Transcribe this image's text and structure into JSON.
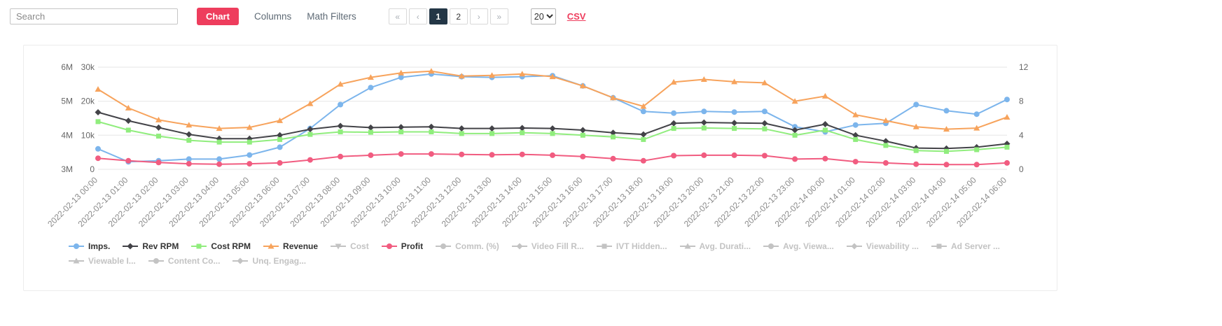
{
  "toolbar": {
    "search_placeholder": "Search",
    "chart_label": "Chart",
    "columns_label": "Columns",
    "math_filters_label": "Math Filters",
    "pagination": {
      "first_label": "«",
      "prev_label": "‹",
      "pages": [
        "1",
        "2"
      ],
      "active_page": "1",
      "next_label": "›",
      "last_label": "»"
    },
    "page_size": "20",
    "csv_label": "CSV"
  },
  "colors": {
    "accent": "#ee3d5d",
    "active_page_bg": "#233646",
    "disabled_legend": "#c3c3c3",
    "grid": "#e6e6e6"
  },
  "chart_data": {
    "type": "line",
    "grid": true,
    "legend_position": "bottom",
    "x": [
      "2022-02-13 00:00",
      "2022-02-13 01:00",
      "2022-02-13 02:00",
      "2022-02-13 03:00",
      "2022-02-13 04:00",
      "2022-02-13 05:00",
      "2022-02-13 06:00",
      "2022-02-13 07:00",
      "2022-02-13 08:00",
      "2022-02-13 09:00",
      "2022-02-13 10:00",
      "2022-02-13 11:00",
      "2022-02-13 12:00",
      "2022-02-13 13:00",
      "2022-02-13 14:00",
      "2022-02-13 15:00",
      "2022-02-13 16:00",
      "2022-02-13 17:00",
      "2022-02-13 18:00",
      "2022-02-13 19:00",
      "2022-02-13 20:00",
      "2022-02-13 21:00",
      "2022-02-13 22:00",
      "2022-02-13 23:00",
      "2022-02-14 00:00",
      "2022-02-14 01:00",
      "2022-02-14 02:00",
      "2022-02-14 03:00",
      "2022-02-14 04:00",
      "2022-02-14 05:00",
      "2022-02-14 06:00"
    ],
    "axes": {
      "left_outer": {
        "labels": [
          "6M",
          "5M",
          "4M",
          "3M"
        ],
        "min": 3,
        "max": 6,
        "unit": "M"
      },
      "left_inner": {
        "labels": [
          "30k",
          "20k",
          "10k",
          "0"
        ],
        "min": 0,
        "max": 30,
        "unit": "k"
      },
      "right": {
        "labels": [
          "12",
          "8",
          "4",
          "0"
        ],
        "min": 0,
        "max": 12,
        "unit": ""
      }
    },
    "series": [
      {
        "name": "Imps.",
        "color": "#7cb5ec",
        "marker": "circle",
        "axis": "left_outer",
        "values": [
          3.6,
          3.22,
          3.25,
          3.3,
          3.3,
          3.42,
          3.65,
          4.2,
          4.9,
          5.4,
          5.7,
          5.8,
          5.72,
          5.7,
          5.72,
          5.75,
          5.45,
          5.1,
          4.7,
          4.65,
          4.7,
          4.68,
          4.7,
          4.25,
          4.1,
          4.3,
          4.35,
          4.9,
          4.72,
          4.62,
          5.05
        ]
      },
      {
        "name": "Rev RPM",
        "color": "#434348",
        "marker": "diamond",
        "axis": "right",
        "values": [
          6.7,
          5.7,
          4.9,
          4.1,
          3.6,
          3.6,
          4.0,
          4.7,
          5.1,
          4.9,
          4.95,
          5.0,
          4.8,
          4.8,
          4.85,
          4.8,
          4.6,
          4.3,
          4.1,
          5.4,
          5.5,
          5.45,
          5.4,
          4.6,
          5.3,
          4.0,
          3.3,
          2.5,
          2.45,
          2.6,
          3.0
        ]
      },
      {
        "name": "Cost RPM",
        "color": "#90ed7d",
        "marker": "square",
        "axis": "right",
        "values": [
          5.6,
          4.6,
          3.9,
          3.4,
          3.2,
          3.2,
          3.5,
          4.1,
          4.4,
          4.35,
          4.4,
          4.4,
          4.2,
          4.2,
          4.3,
          4.2,
          4.0,
          3.8,
          3.5,
          4.8,
          4.85,
          4.8,
          4.75,
          4.0,
          4.6,
          3.5,
          2.8,
          2.2,
          2.1,
          2.3,
          2.6
        ]
      },
      {
        "name": "Revenue",
        "color": "#f7a35c",
        "marker": "triangle",
        "axis": "left_inner",
        "values": [
          23.5,
          18,
          14.5,
          13,
          12,
          12.3,
          14.3,
          19.3,
          25,
          27,
          28.3,
          28.8,
          27.4,
          27.6,
          28,
          27.2,
          24.5,
          21,
          18.5,
          25.6,
          26.4,
          25.7,
          25.4,
          20,
          21.5,
          16,
          14.3,
          12.5,
          11.8,
          12.1,
          15.3
        ]
      },
      {
        "name": "Profit",
        "color": "#f15c80",
        "marker": "circle",
        "axis": "right",
        "values": [
          1.3,
          1.0,
          0.8,
          0.65,
          0.6,
          0.65,
          0.75,
          1.1,
          1.5,
          1.65,
          1.8,
          1.8,
          1.75,
          1.7,
          1.75,
          1.65,
          1.5,
          1.25,
          1.0,
          1.6,
          1.65,
          1.65,
          1.6,
          1.2,
          1.25,
          0.9,
          0.75,
          0.6,
          0.55,
          0.55,
          0.75
        ]
      }
    ],
    "legend": {
      "rows": [
        [
          {
            "label": "Imps.",
            "color": "#7cb5ec",
            "marker": "circle",
            "enabled": true
          },
          {
            "label": "Rev RPM",
            "color": "#434348",
            "marker": "diamond",
            "enabled": true
          },
          {
            "label": "Cost RPM",
            "color": "#90ed7d",
            "marker": "square",
            "enabled": true
          },
          {
            "label": "Revenue",
            "color": "#f7a35c",
            "marker": "triangle",
            "enabled": true
          },
          {
            "label": "Cost",
            "marker": "triangle-down",
            "enabled": false
          },
          {
            "label": "Profit",
            "color": "#f15c80",
            "marker": "circle",
            "enabled": true
          },
          {
            "label": "Comm. (%)",
            "marker": "circle",
            "enabled": false
          },
          {
            "label": "Video Fill R...",
            "marker": "diamond",
            "enabled": false
          },
          {
            "label": "IVT Hidden...",
            "marker": "square",
            "enabled": false
          },
          {
            "label": "Avg. Durati...",
            "marker": "triangle",
            "enabled": false
          },
          {
            "label": "Avg. Viewa...",
            "marker": "circle",
            "enabled": false
          },
          {
            "label": "Viewability ...",
            "marker": "diamond",
            "enabled": false
          },
          {
            "label": "Ad Server ...",
            "marker": "square",
            "enabled": false
          }
        ],
        [
          {
            "label": "Viewable I...",
            "marker": "triangle",
            "enabled": false
          },
          {
            "label": "Content Co...",
            "marker": "circle",
            "enabled": false
          },
          {
            "label": "Unq. Engag...",
            "marker": "diamond",
            "enabled": false
          }
        ]
      ]
    }
  }
}
